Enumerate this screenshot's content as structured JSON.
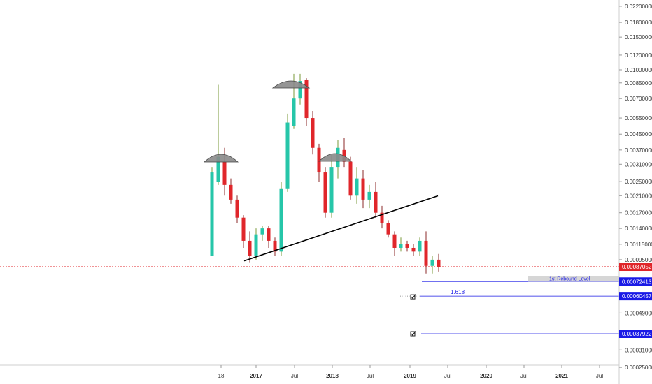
{
  "chart_data": {
    "type": "candlestick",
    "scale": "log",
    "grid": false,
    "colors": {
      "up": "#26c6a9",
      "down": "#e0262b",
      "wick_up": "#7a9a3a",
      "wick_down": "#8b2a2a",
      "price_line": "#e0262b",
      "level": "#1a1ae6",
      "trendline": "#000000",
      "dome": "#8a8a8a"
    },
    "y_ticks": [
      "0.02200000",
      "0.01800000",
      "0.01500000",
      "0.01200000",
      "0.01000000",
      "0.00850000",
      "0.00700000",
      "0.00550000",
      "0.00450000",
      "0.00370000",
      "0.00310000",
      "0.00250000",
      "0.00210000",
      "0.00170000",
      "0.00140000",
      "0.00115000",
      "0.00095000",
      "0.00049000",
      "0.00031000",
      "0.00025000"
    ],
    "x_ticks": [
      {
        "label": "18",
        "bold": false
      },
      {
        "label": "2017",
        "bold": true
      },
      {
        "label": "Jul",
        "bold": false
      },
      {
        "label": "2018",
        "bold": true
      },
      {
        "label": "Jul",
        "bold": false
      },
      {
        "label": "2019",
        "bold": true
      },
      {
        "label": "Jul",
        "bold": false
      },
      {
        "label": "2020",
        "bold": true
      },
      {
        "label": "Jul",
        "bold": false
      },
      {
        "label": "2021",
        "bold": true
      },
      {
        "label": "Jul",
        "bold": false
      }
    ],
    "price_tags": [
      {
        "label": "0.00087052",
        "value": 0.00087052,
        "color": "#e0262b"
      },
      {
        "label": "0.00072413",
        "value": 0.00072413,
        "color": "#1a1ae6"
      },
      {
        "label": "0.00060457",
        "value": 0.00060457,
        "color": "#1a1ae6"
      },
      {
        "label": "0.00037922",
        "value": 0.00037922,
        "color": "#1a1ae6"
      }
    ],
    "annotations": {
      "rebound_label": "1st Rebound Level",
      "fib_label": "1.618"
    },
    "patterns": {
      "type": "head-and-shoulders",
      "neckline": [
        [
          "2016-12",
          0.00092
        ],
        [
          "2019-05",
          0.00206
        ]
      ],
      "left_shoulder": "2016-07",
      "head": "2017-06",
      "right_shoulder": "2018-03"
    },
    "candles": [
      {
        "d": "2016-06",
        "o": 0.001,
        "h": 0.003,
        "l": 0.001,
        "c": 0.0028
      },
      {
        "d": "2016-07",
        "o": 0.0025,
        "h": 0.0083,
        "l": 0.0024,
        "c": 0.0034
      },
      {
        "d": "2016-08",
        "o": 0.0032,
        "h": 0.0038,
        "l": 0.0021,
        "c": 0.0024
      },
      {
        "d": "2016-09",
        "o": 0.0024,
        "h": 0.0026,
        "l": 0.0019,
        "c": 0.002
      },
      {
        "d": "2016-10",
        "o": 0.002,
        "h": 0.0021,
        "l": 0.0015,
        "c": 0.0016
      },
      {
        "d": "2016-11",
        "o": 0.0016,
        "h": 0.00165,
        "l": 0.0011,
        "c": 0.0012
      },
      {
        "d": "2016-12",
        "o": 0.0012,
        "h": 0.00135,
        "l": 0.00092,
        "c": 0.001
      },
      {
        "d": "2017-01",
        "o": 0.001,
        "h": 0.0014,
        "l": 0.00095,
        "c": 0.0013
      },
      {
        "d": "2017-02",
        "o": 0.0013,
        "h": 0.00145,
        "l": 0.0012,
        "c": 0.0014
      },
      {
        "d": "2017-03",
        "o": 0.0014,
        "h": 0.00145,
        "l": 0.0011,
        "c": 0.0012
      },
      {
        "d": "2017-04",
        "o": 0.0012,
        "h": 0.00125,
        "l": 0.001,
        "c": 0.00105
      },
      {
        "d": "2017-05",
        "o": 0.00105,
        "h": 0.0025,
        "l": 0.001,
        "c": 0.0023
      },
      {
        "d": "2017-06",
        "o": 0.0023,
        "h": 0.0058,
        "l": 0.0022,
        "c": 0.0052
      },
      {
        "d": "2017-07",
        "o": 0.005,
        "h": 0.0095,
        "l": 0.0048,
        "c": 0.007
      },
      {
        "d": "2017-08",
        "o": 0.007,
        "h": 0.0095,
        "l": 0.0065,
        "c": 0.0087
      },
      {
        "d": "2017-09",
        "o": 0.0088,
        "h": 0.009,
        "l": 0.005,
        "c": 0.0055
      },
      {
        "d": "2017-10",
        "o": 0.0055,
        "h": 0.006,
        "l": 0.0035,
        "c": 0.0038
      },
      {
        "d": "2017-11",
        "o": 0.0038,
        "h": 0.004,
        "l": 0.0025,
        "c": 0.0028
      },
      {
        "d": "2017-12",
        "o": 0.0028,
        "h": 0.003,
        "l": 0.0016,
        "c": 0.0017
      },
      {
        "d": "2018-01",
        "o": 0.0017,
        "h": 0.0035,
        "l": 0.0016,
        "c": 0.003
      },
      {
        "d": "2018-02",
        "o": 0.003,
        "h": 0.0042,
        "l": 0.0026,
        "c": 0.0038
      },
      {
        "d": "2018-03",
        "o": 0.0037,
        "h": 0.0043,
        "l": 0.003,
        "c": 0.0032
      },
      {
        "d": "2018-04",
        "o": 0.0032,
        "h": 0.0034,
        "l": 0.002,
        "c": 0.0021
      },
      {
        "d": "2018-05",
        "o": 0.0021,
        "h": 0.003,
        "l": 0.0019,
        "c": 0.0026
      },
      {
        "d": "2018-06",
        "o": 0.0026,
        "h": 0.0029,
        "l": 0.0018,
        "c": 0.002
      },
      {
        "d": "2018-07",
        "o": 0.002,
        "h": 0.0024,
        "l": 0.0018,
        "c": 0.0022
      },
      {
        "d": "2018-08",
        "o": 0.0022,
        "h": 0.0025,
        "l": 0.0016,
        "c": 0.0017
      },
      {
        "d": "2018-09",
        "o": 0.0017,
        "h": 0.00185,
        "l": 0.0014,
        "c": 0.0015
      },
      {
        "d": "2018-10",
        "o": 0.0015,
        "h": 0.00155,
        "l": 0.00125,
        "c": 0.0013
      },
      {
        "d": "2018-11",
        "o": 0.0013,
        "h": 0.00135,
        "l": 0.001,
        "c": 0.0011
      },
      {
        "d": "2018-12",
        "o": 0.0011,
        "h": 0.00125,
        "l": 0.00105,
        "c": 0.00115
      },
      {
        "d": "2019-01",
        "o": 0.00115,
        "h": 0.0012,
        "l": 0.00105,
        "c": 0.0011
      },
      {
        "d": "2019-02",
        "o": 0.0011,
        "h": 0.00115,
        "l": 0.001,
        "c": 0.00105
      },
      {
        "d": "2019-03",
        "o": 0.00105,
        "h": 0.00125,
        "l": 0.001,
        "c": 0.0012
      },
      {
        "d": "2019-04",
        "o": 0.0012,
        "h": 0.00135,
        "l": 0.0008,
        "c": 0.00088
      },
      {
        "d": "2019-05",
        "o": 0.00088,
        "h": 0.001,
        "l": 0.0008,
        "c": 0.00095
      },
      {
        "d": "2019-06",
        "o": 0.00095,
        "h": 0.00102,
        "l": 0.00082,
        "c": 0.00087
      }
    ]
  }
}
